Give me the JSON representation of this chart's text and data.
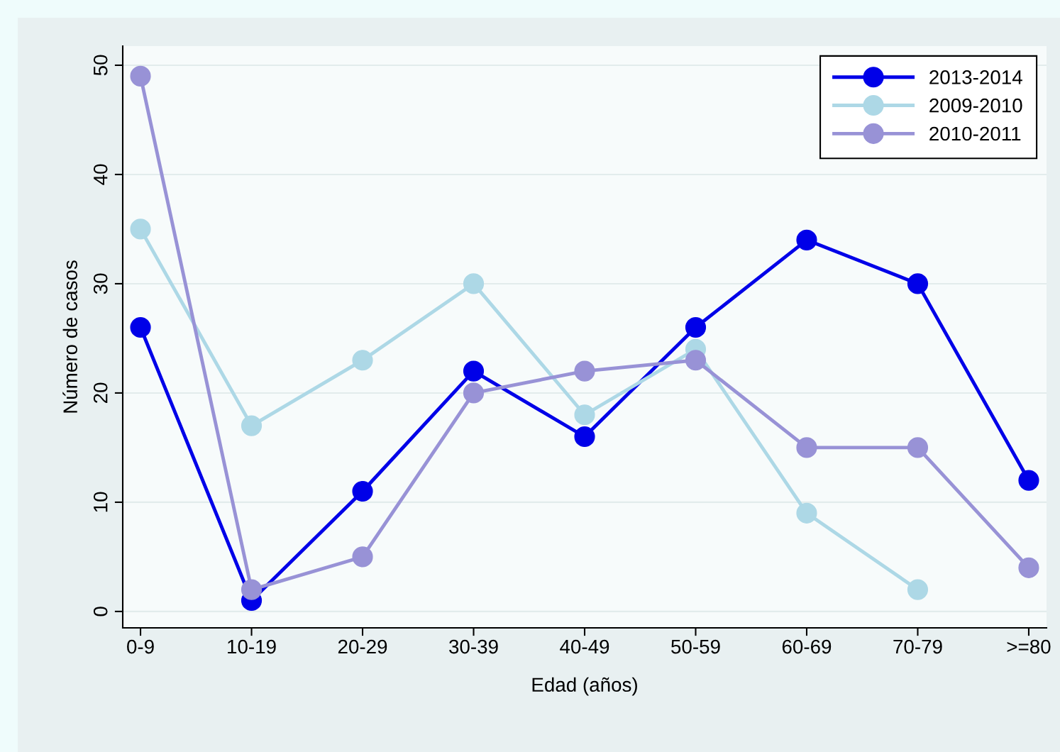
{
  "chart_data": {
    "type": "line",
    "xlabel": "Edad (años)",
    "ylabel": "Número de casos",
    "categories": [
      "0-9",
      "10-19",
      "20-29",
      "30-39",
      "40-49",
      "50-59",
      "60-69",
      "70-79",
      ">=80"
    ],
    "series": [
      {
        "name": "2013-2014",
        "color": "#0000e8",
        "values": [
          26,
          1,
          11,
          22,
          16,
          26,
          34,
          30,
          12
        ]
      },
      {
        "name": "2009-2010",
        "color": "#add8e6",
        "values": [
          35,
          17,
          23,
          30,
          18,
          24,
          9,
          2,
          null
        ]
      },
      {
        "name": "2010-2011",
        "color": "#9892d6",
        "values": [
          49,
          2,
          5,
          20,
          22,
          23,
          15,
          15,
          4
        ]
      }
    ],
    "ylim": [
      -1.5,
      51.75
    ],
    "yticks": [
      0,
      10,
      20,
      30,
      40,
      50
    ],
    "grid": "y",
    "legend": "top right",
    "marker": "circle",
    "line_style": "solid"
  }
}
